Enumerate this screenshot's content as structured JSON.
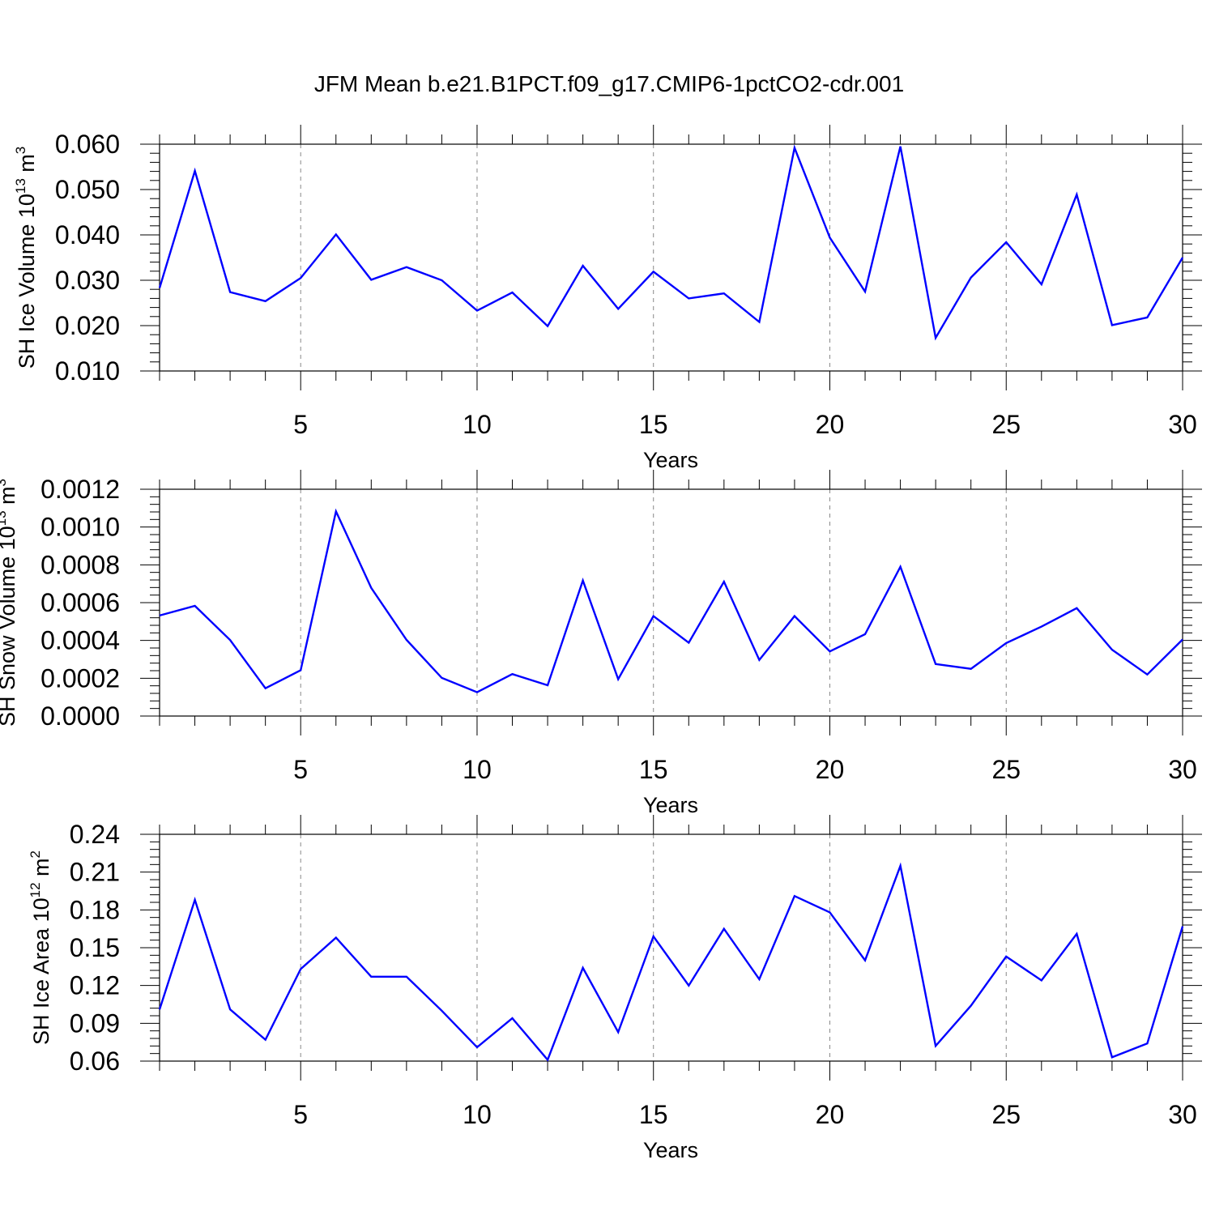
{
  "chart_data": {
    "title": "JFM Mean b.e21.B1PCT.f09_g17.CMIP6-1pctCO2-cdr.001",
    "panels": [
      {
        "type": "line",
        "ylabel_prefix": "SH Ice Volume 10",
        "ylabel_exp": "13",
        "ylabel_unit": " m",
        "ylabel_unit_exp": "3",
        "xlabel": "Years",
        "xlim": [
          1,
          30
        ],
        "ylim": [
          0.01,
          0.06
        ],
        "yticks": [
          0.01,
          0.02,
          0.03,
          0.04,
          0.05,
          0.06
        ],
        "ytick_labels": [
          "0.010",
          "0.020",
          "0.030",
          "0.040",
          "0.050",
          "0.060"
        ],
        "xticks": [
          5,
          10,
          15,
          20,
          25,
          30
        ],
        "xtick_labels": [
          "5",
          "10",
          "15",
          "20",
          "25",
          "30"
        ],
        "line_color": "#0000ff",
        "x": [
          1,
          2,
          3,
          4,
          5,
          6,
          7,
          8,
          9,
          10,
          11,
          12,
          13,
          14,
          15,
          16,
          17,
          18,
          19,
          20,
          21,
          22,
          23,
          24,
          25,
          26,
          27,
          28,
          29,
          30
        ],
        "values": [
          0.0283,
          0.0541,
          0.0274,
          0.0254,
          0.0305,
          0.0401,
          0.0301,
          0.0329,
          0.03,
          0.0233,
          0.0273,
          0.0199,
          0.0332,
          0.0237,
          0.0319,
          0.026,
          0.0271,
          0.0208,
          0.0592,
          0.0394,
          0.0275,
          0.0595,
          0.0173,
          0.0306,
          0.0384,
          0.0291,
          0.0489,
          0.0201,
          0.0218,
          0.035
        ]
      },
      {
        "type": "line",
        "ylabel_prefix": "SH Snow Volume 10",
        "ylabel_exp": "13",
        "ylabel_unit": " m",
        "ylabel_unit_exp": "3",
        "xlabel": "Years",
        "xlim": [
          1,
          30
        ],
        "ylim": [
          0.0,
          0.0012
        ],
        "yticks": [
          0.0,
          0.0002,
          0.0004,
          0.0006,
          0.0008,
          0.001,
          0.0012
        ],
        "ytick_labels": [
          "0.0000",
          "0.0002",
          "0.0004",
          "0.0006",
          "0.0008",
          "0.0010",
          "0.0012"
        ],
        "xticks": [
          5,
          10,
          15,
          20,
          25,
          30
        ],
        "xtick_labels": [
          "5",
          "10",
          "15",
          "20",
          "25",
          "30"
        ],
        "line_color": "#0000ff",
        "x": [
          1,
          2,
          3,
          4,
          5,
          6,
          7,
          8,
          9,
          10,
          11,
          12,
          13,
          14,
          15,
          16,
          17,
          18,
          19,
          20,
          21,
          22,
          23,
          24,
          25,
          26,
          27,
          28,
          29,
          30
        ],
        "values": [
          0.000532,
          0.000583,
          0.000402,
          0.000147,
          0.000242,
          0.001083,
          0.000678,
          0.000403,
          0.000202,
          0.000126,
          0.000222,
          0.000163,
          0.000717,
          0.000195,
          0.000529,
          0.000388,
          0.000711,
          0.000297,
          0.000529,
          0.000342,
          0.000433,
          0.00079,
          0.000275,
          0.00025,
          0.000386,
          0.000473,
          0.000571,
          0.000351,
          0.00022,
          0.000405
        ]
      },
      {
        "type": "line",
        "ylabel_prefix": "SH Ice Area 10",
        "ylabel_exp": "12",
        "ylabel_unit": " m",
        "ylabel_unit_exp": "2",
        "xlabel": "Years",
        "xlim": [
          1,
          30
        ],
        "ylim": [
          0.06,
          0.24
        ],
        "yticks": [
          0.06,
          0.09,
          0.12,
          0.15,
          0.18,
          0.21,
          0.24
        ],
        "ytick_labels": [
          "0.06",
          "0.09",
          "0.12",
          "0.15",
          "0.18",
          "0.21",
          "0.24"
        ],
        "xticks": [
          5,
          10,
          15,
          20,
          25,
          30
        ],
        "xtick_labels": [
          "5",
          "10",
          "15",
          "20",
          "25",
          "30"
        ],
        "line_color": "#0000ff",
        "x": [
          1,
          2,
          3,
          4,
          5,
          6,
          7,
          8,
          9,
          10,
          11,
          12,
          13,
          14,
          15,
          16,
          17,
          18,
          19,
          20,
          21,
          22,
          23,
          24,
          25,
          26,
          27,
          28,
          29,
          30
        ],
        "values": [
          0.101,
          0.188,
          0.101,
          0.077,
          0.133,
          0.158,
          0.127,
          0.127,
          0.1,
          0.071,
          0.094,
          0.061,
          0.134,
          0.083,
          0.159,
          0.12,
          0.165,
          0.125,
          0.191,
          0.178,
          0.14,
          0.215,
          0.072,
          0.104,
          0.143,
          0.124,
          0.161,
          0.063,
          0.074,
          0.167
        ]
      }
    ]
  }
}
